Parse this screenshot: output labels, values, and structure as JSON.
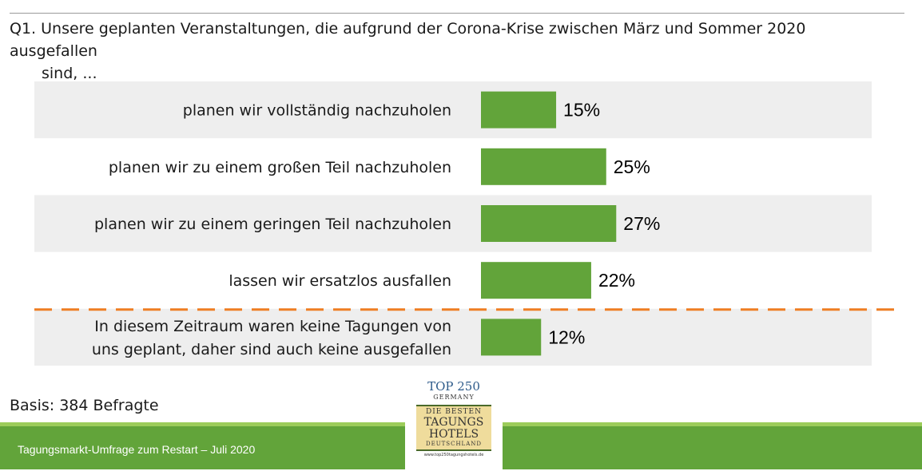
{
  "question": {
    "line1": "Q1. Unsere geplanten Veranstaltungen, die aufgrund der Corona-Krise zwischen März und Sommer 2020 ausgefallen",
    "line2": "sind, ..."
  },
  "chart_data": {
    "type": "bar",
    "orientation": "horizontal",
    "categories": [
      [
        "planen wir vollständig nachzuholen"
      ],
      [
        "planen wir zu einem großen Teil nachzuholen"
      ],
      [
        "planen wir zu einem geringen Teil nachzuholen"
      ],
      [
        "lassen wir ersatzlos ausfallen"
      ],
      [
        "In diesem Zeitraum waren keine Tagungen von",
        "uns geplant, daher sind auch keine ausgefallen"
      ]
    ],
    "values": [
      15,
      25,
      27,
      22,
      12
    ],
    "value_labels": [
      "15%",
      "25%",
      "27%",
      "22%",
      "12%"
    ],
    "separator_before_index": 4,
    "colors": {
      "bar": "#62a43a",
      "row_shade": "#eeeeee",
      "separator": "#ee7d22"
    }
  },
  "basis": "Basis: 384 Befragte",
  "footer": {
    "text": "Tagungsmarkt-Umfrage zum Restart – Juli 2020"
  },
  "logo": {
    "top": "TOP 250",
    "germany": "GERMANY",
    "l1": "DIE BESTEN",
    "l2": "TAGUNGS",
    "l3": "HOTELS",
    "l4": "DEUTSCHLAND",
    "url": "www.top250tagungshotels.de"
  }
}
